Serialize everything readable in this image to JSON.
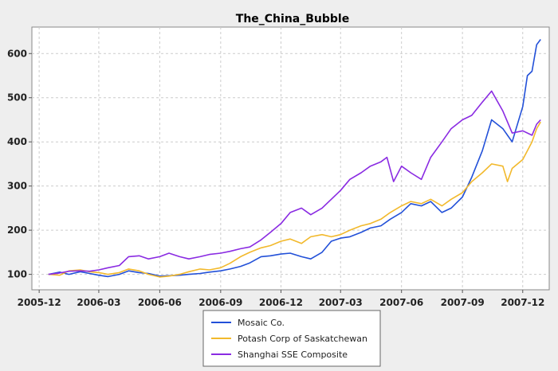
{
  "chart_data": {
    "type": "line",
    "title": "The_China_Bubble",
    "xlabel": "",
    "ylabel": "",
    "xlim": [
      "2005-11-20",
      "2008-01-10"
    ],
    "ylim": [
      65,
      660
    ],
    "yticks": [
      100,
      200,
      300,
      400,
      500,
      600
    ],
    "xticks": [
      {
        "date": "2005-12-01",
        "label": "2005-12"
      },
      {
        "date": "2006-03-01",
        "label": "2006-03"
      },
      {
        "date": "2006-06-01",
        "label": "2006-06"
      },
      {
        "date": "2006-09-01",
        "label": "2006-09"
      },
      {
        "date": "2006-12-01",
        "label": "2006-12"
      },
      {
        "date": "2007-03-01",
        "label": "2007-03"
      },
      {
        "date": "2007-06-01",
        "label": "2007-06"
      },
      {
        "date": "2007-09-01",
        "label": "2007-09"
      },
      {
        "date": "2007-12-01",
        "label": "2007-12"
      }
    ],
    "grid": true,
    "legend_position": "bottom",
    "series": [
      {
        "name": "Mosaic Co.",
        "color": "#2250d8",
        "points": [
          [
            "2005-12-15",
            100
          ],
          [
            "2006-01-01",
            105
          ],
          [
            "2006-01-15",
            100
          ],
          [
            "2006-02-01",
            106
          ],
          [
            "2006-02-15",
            102
          ],
          [
            "2006-03-01",
            98
          ],
          [
            "2006-03-15",
            95
          ],
          [
            "2006-04-01",
            100
          ],
          [
            "2006-04-15",
            108
          ],
          [
            "2006-05-01",
            104
          ],
          [
            "2006-05-15",
            102
          ],
          [
            "2006-06-01",
            96
          ],
          [
            "2006-06-15",
            97
          ],
          [
            "2006-07-01",
            98
          ],
          [
            "2006-07-15",
            100
          ],
          [
            "2006-08-01",
            102
          ],
          [
            "2006-08-15",
            105
          ],
          [
            "2006-09-01",
            108
          ],
          [
            "2006-09-15",
            112
          ],
          [
            "2006-10-01",
            118
          ],
          [
            "2006-10-15",
            126
          ],
          [
            "2006-11-01",
            140
          ],
          [
            "2006-11-15",
            142
          ],
          [
            "2006-12-01",
            146
          ],
          [
            "2006-12-15",
            148
          ],
          [
            "2007-01-01",
            140
          ],
          [
            "2007-01-15",
            135
          ],
          [
            "2007-02-01",
            150
          ],
          [
            "2007-02-15",
            175
          ],
          [
            "2007-03-01",
            182
          ],
          [
            "2007-03-15",
            185
          ],
          [
            "2007-04-01",
            195
          ],
          [
            "2007-04-15",
            205
          ],
          [
            "2007-05-01",
            210
          ],
          [
            "2007-05-15",
            225
          ],
          [
            "2007-06-01",
            240
          ],
          [
            "2007-06-15",
            260
          ],
          [
            "2007-07-01",
            255
          ],
          [
            "2007-07-15",
            265
          ],
          [
            "2007-08-01",
            240
          ],
          [
            "2007-08-15",
            250
          ],
          [
            "2007-09-01",
            275
          ],
          [
            "2007-09-15",
            320
          ],
          [
            "2007-10-01",
            380
          ],
          [
            "2007-10-15",
            450
          ],
          [
            "2007-11-01",
            430
          ],
          [
            "2007-11-15",
            400
          ],
          [
            "2007-12-01",
            480
          ],
          [
            "2007-12-08",
            550
          ],
          [
            "2007-12-15",
            560
          ],
          [
            "2007-12-22",
            620
          ],
          [
            "2007-12-28",
            632
          ]
        ]
      },
      {
        "name": "Potash Corp of Saskatchewan",
        "color": "#f2b92c",
        "points": [
          [
            "2005-12-15",
            100
          ],
          [
            "2006-01-01",
            98
          ],
          [
            "2006-01-15",
            108
          ],
          [
            "2006-02-01",
            110
          ],
          [
            "2006-02-15",
            106
          ],
          [
            "2006-03-01",
            104
          ],
          [
            "2006-03-15",
            100
          ],
          [
            "2006-04-01",
            104
          ],
          [
            "2006-04-15",
            112
          ],
          [
            "2006-05-01",
            108
          ],
          [
            "2006-05-15",
            100
          ],
          [
            "2006-06-01",
            94
          ],
          [
            "2006-06-15",
            96
          ],
          [
            "2006-07-01",
            100
          ],
          [
            "2006-07-15",
            106
          ],
          [
            "2006-08-01",
            112
          ],
          [
            "2006-08-15",
            110
          ],
          [
            "2006-09-01",
            115
          ],
          [
            "2006-09-15",
            125
          ],
          [
            "2006-10-01",
            140
          ],
          [
            "2006-10-15",
            150
          ],
          [
            "2006-11-01",
            160
          ],
          [
            "2006-11-15",
            165
          ],
          [
            "2006-12-01",
            175
          ],
          [
            "2006-12-15",
            180
          ],
          [
            "2007-01-01",
            170
          ],
          [
            "2007-01-15",
            185
          ],
          [
            "2007-02-01",
            190
          ],
          [
            "2007-02-15",
            185
          ],
          [
            "2007-03-01",
            190
          ],
          [
            "2007-03-15",
            200
          ],
          [
            "2007-04-01",
            210
          ],
          [
            "2007-04-15",
            215
          ],
          [
            "2007-05-01",
            225
          ],
          [
            "2007-05-15",
            240
          ],
          [
            "2007-06-01",
            255
          ],
          [
            "2007-06-15",
            265
          ],
          [
            "2007-07-01",
            260
          ],
          [
            "2007-07-15",
            270
          ],
          [
            "2007-08-01",
            255
          ],
          [
            "2007-08-15",
            270
          ],
          [
            "2007-09-01",
            285
          ],
          [
            "2007-09-15",
            310
          ],
          [
            "2007-10-01",
            330
          ],
          [
            "2007-10-15",
            350
          ],
          [
            "2007-11-01",
            345
          ],
          [
            "2007-11-08",
            310
          ],
          [
            "2007-11-15",
            340
          ],
          [
            "2007-12-01",
            360
          ],
          [
            "2007-12-15",
            400
          ],
          [
            "2007-12-22",
            430
          ],
          [
            "2007-12-28",
            445
          ]
        ]
      },
      {
        "name": "Shanghai SSE Composite",
        "color": "#8a2be2",
        "points": [
          [
            "2005-12-15",
            100
          ],
          [
            "2006-01-01",
            103
          ],
          [
            "2006-01-15",
            107
          ],
          [
            "2006-02-01",
            108
          ],
          [
            "2006-02-15",
            107
          ],
          [
            "2006-03-01",
            110
          ],
          [
            "2006-03-15",
            115
          ],
          [
            "2006-04-01",
            120
          ],
          [
            "2006-04-15",
            140
          ],
          [
            "2006-05-01",
            142
          ],
          [
            "2006-05-15",
            135
          ],
          [
            "2006-06-01",
            140
          ],
          [
            "2006-06-15",
            148
          ],
          [
            "2006-07-01",
            140
          ],
          [
            "2006-07-15",
            135
          ],
          [
            "2006-08-01",
            140
          ],
          [
            "2006-08-15",
            145
          ],
          [
            "2006-09-01",
            148
          ],
          [
            "2006-09-15",
            152
          ],
          [
            "2006-10-01",
            158
          ],
          [
            "2006-10-15",
            162
          ],
          [
            "2006-11-01",
            178
          ],
          [
            "2006-11-15",
            195
          ],
          [
            "2006-12-01",
            215
          ],
          [
            "2006-12-15",
            240
          ],
          [
            "2007-01-01",
            250
          ],
          [
            "2007-01-15",
            235
          ],
          [
            "2007-02-01",
            250
          ],
          [
            "2007-02-15",
            270
          ],
          [
            "2007-03-01",
            290
          ],
          [
            "2007-03-15",
            315
          ],
          [
            "2007-04-01",
            330
          ],
          [
            "2007-04-15",
            345
          ],
          [
            "2007-05-01",
            355
          ],
          [
            "2007-05-10",
            365
          ],
          [
            "2007-05-20",
            310
          ],
          [
            "2007-06-01",
            345
          ],
          [
            "2007-06-15",
            330
          ],
          [
            "2007-07-01",
            315
          ],
          [
            "2007-07-15",
            365
          ],
          [
            "2007-08-01",
            400
          ],
          [
            "2007-08-15",
            430
          ],
          [
            "2007-09-01",
            450
          ],
          [
            "2007-09-15",
            460
          ],
          [
            "2007-10-01",
            490
          ],
          [
            "2007-10-15",
            515
          ],
          [
            "2007-11-01",
            470
          ],
          [
            "2007-11-15",
            420
          ],
          [
            "2007-12-01",
            425
          ],
          [
            "2007-12-15",
            415
          ],
          [
            "2007-12-22",
            440
          ],
          [
            "2007-12-28",
            450
          ]
        ]
      }
    ]
  }
}
